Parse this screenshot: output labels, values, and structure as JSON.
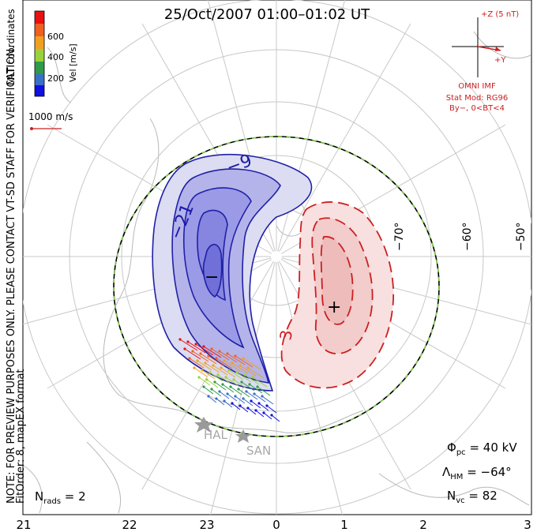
{
  "title": "25/Oct/2007 01:00–01:02 UT",
  "colorbar": {
    "label": "Vel [m/s]",
    "ticks": [
      "600",
      "400",
      "200"
    ],
    "colors": [
      "#e81010",
      "#f06020",
      "#f0a020",
      "#9ad23a",
      "#2f9a4a",
      "#3a6fc8",
      "#1010e0"
    ]
  },
  "coord_label": "MLT coordinates",
  "scale_vector": "1000 m/s",
  "preview_note": "NOTE: FOR PREVIEW PURPOSES ONLY. PLEASE CONTACT VT-SD STAFF FOR VERIFICATION.",
  "fit_note": "FitOrder: 8, mapEX format",
  "imf": {
    "z_label": "+Z (5 nT)",
    "y_label": "+Y",
    "source": "OMNI IMF",
    "model": "Stat Mod: RG96",
    "condition": "By−, 0<BT<4"
  },
  "latitude_labels": [
    "−50°",
    "−60°",
    "−70°"
  ],
  "mlt_labels": [
    "21",
    "22",
    "23",
    "0",
    "1",
    "2",
    "3"
  ],
  "contour_labels": {
    "neg9": "−9",
    "neg21": "−21",
    "pos3": "3"
  },
  "min_marker": "−",
  "max_marker": "+",
  "radars": [
    "HAL",
    "SAN"
  ],
  "stats": {
    "phi_pc": "40 kV",
    "lambda_hm": "−64°",
    "n_vc": "82",
    "n_rads": "2"
  },
  "accent_colors": {
    "negative": "#1a1aa8",
    "positive": "#cc2020",
    "hm_boundary": "#7fd04a"
  }
}
